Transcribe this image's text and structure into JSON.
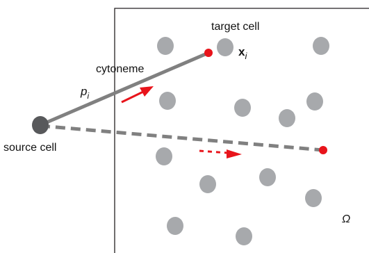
{
  "labels": {
    "target_cell": "target cell",
    "target_position_symbol": "x",
    "target_position_subscript": "i",
    "cytoneme": "cytoneme",
    "probability_symbol": "p",
    "probability_subscript": "i",
    "source_cell": "source cell",
    "domain_symbol": "Ω"
  },
  "colors": {
    "cell_gray": "#a7a9ac",
    "source_cell": "#58595b",
    "target_red": "#e8141b",
    "arrow_red": "#e8141b",
    "cytoneme_gray": "#808080",
    "domain_border": "#231f20"
  }
}
